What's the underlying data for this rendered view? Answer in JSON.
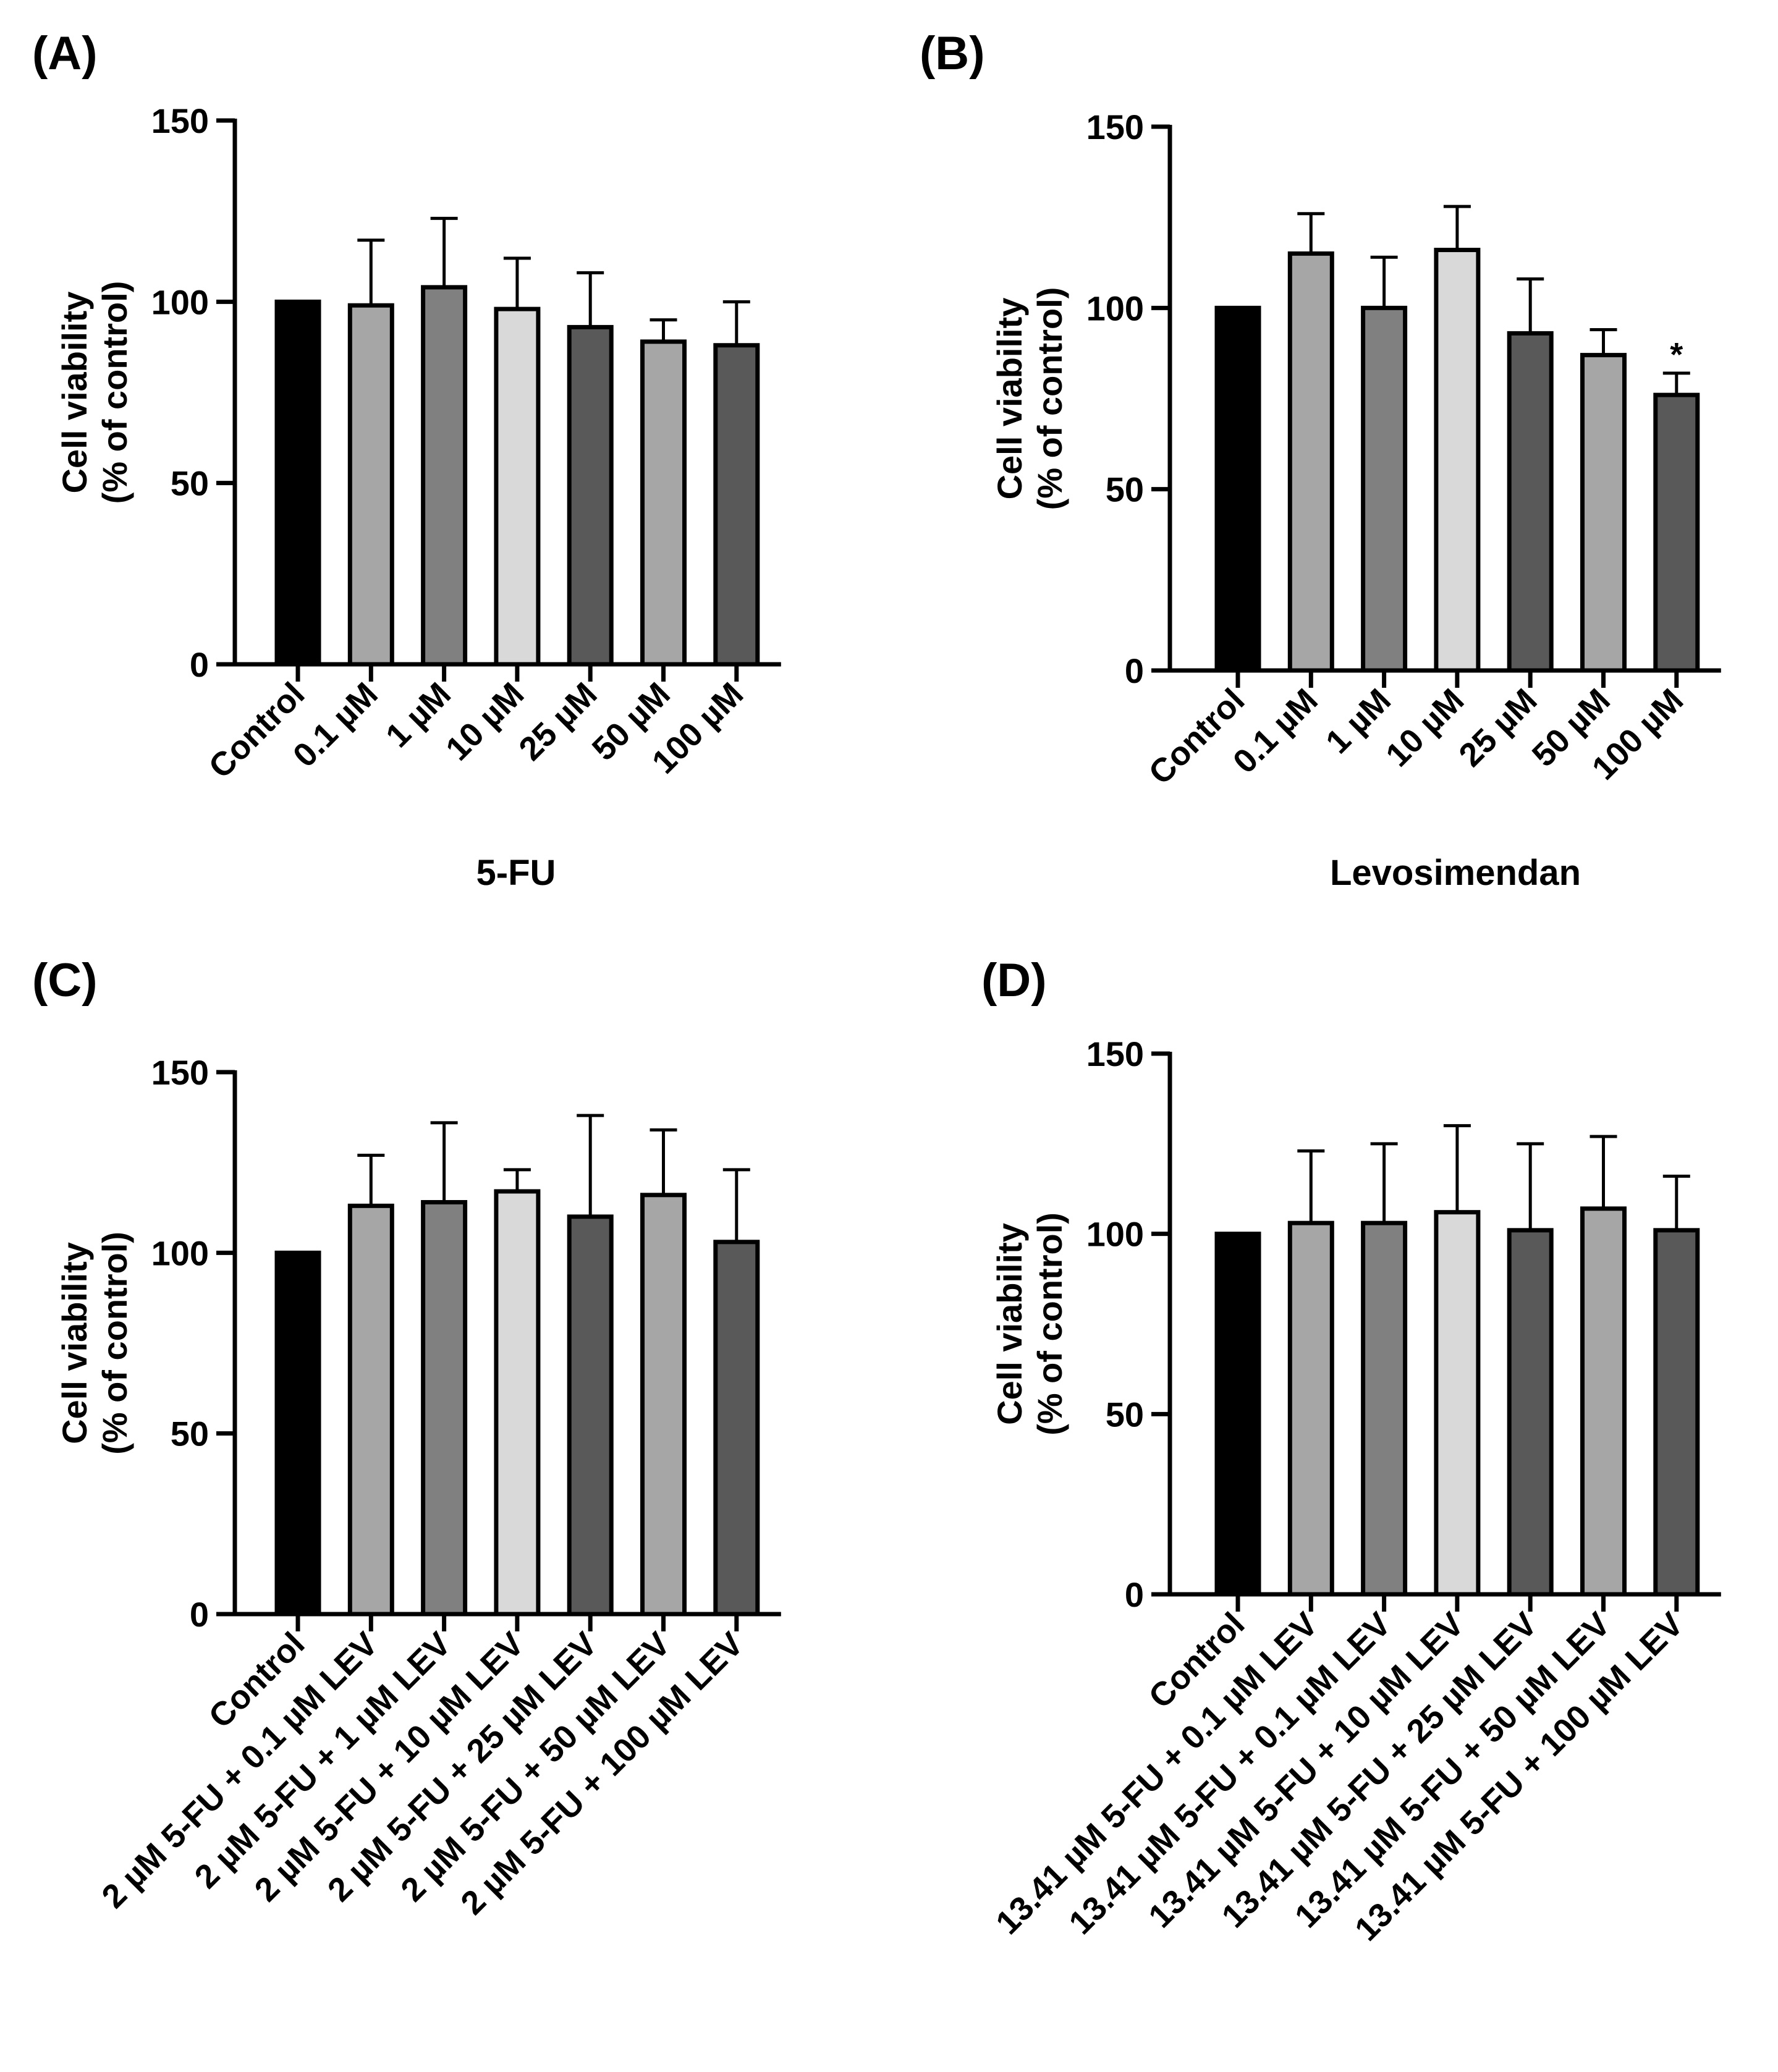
{
  "colors": {
    "control": "#000000",
    "light_gray": "#a6a6a6",
    "mid_gray": "#808080",
    "very_light": "#d9d9d9",
    "dark_gray": "#595959",
    "axis": "#000000"
  },
  "chart_data": [
    {
      "panel": "(A)",
      "type": "bar",
      "title": "",
      "xlabel": "5-FU",
      "ylabel_line1": "Cell viability",
      "ylabel_line2": "(% of control)",
      "ylim": [
        0,
        150
      ],
      "yticks": [
        "0",
        "50",
        "100",
        "150"
      ],
      "categories": [
        "Control",
        "0.1 µM",
        "1 µM",
        "10 µM",
        "25 µM",
        "50 µM",
        "100 µM"
      ],
      "values": [
        100,
        99,
        104,
        98,
        93,
        89,
        88
      ],
      "errors": [
        0,
        18,
        19,
        14,
        15,
        6,
        12
      ],
      "bar_colors": [
        "control",
        "light_gray",
        "mid_gray",
        "very_light",
        "dark_gray",
        "light_gray",
        "dark_gray"
      ],
      "annotations": [
        "",
        "",
        "",
        "",
        "",
        "",
        ""
      ]
    },
    {
      "panel": "(B)",
      "type": "bar",
      "title": "",
      "xlabel": "Levosimendan",
      "ylabel_line1": "Cell viability",
      "ylabel_line2": "(% of control)",
      "ylim": [
        0,
        150
      ],
      "yticks": [
        "0",
        "50",
        "100",
        "150"
      ],
      "categories": [
        "Control",
        "0.1 µM",
        "1 µM",
        "10 µM",
        "25 µM",
        "50 µM",
        "100 µM"
      ],
      "values": [
        100,
        115,
        100,
        116,
        93,
        87,
        76
      ],
      "errors": [
        0,
        11,
        14,
        12,
        15,
        7,
        6
      ],
      "bar_colors": [
        "control",
        "light_gray",
        "mid_gray",
        "very_light",
        "dark_gray",
        "light_gray",
        "dark_gray"
      ],
      "annotations": [
        "",
        "",
        "",
        "",
        "",
        "",
        "*"
      ]
    },
    {
      "panel": "(C)",
      "type": "bar",
      "title": "",
      "xlabel": "",
      "ylabel_line1": "Cell viability",
      "ylabel_line2": "(% of control)",
      "ylim": [
        0,
        150
      ],
      "yticks": [
        "0",
        "50",
        "100",
        "150"
      ],
      "categories": [
        "Control",
        "2 µM 5-FU  + 0.1 µM LEV",
        "2 µM 5-FU  + 1 µM LEV",
        "2 µM 5-FU  + 10 µM LEV",
        "2 µM 5-FU  + 25 µM LEV",
        "2 µM 5-FU  + 50 µM LEV",
        "2 µM 5-FU  + 100 µM LEV"
      ],
      "values": [
        100,
        113,
        114,
        117,
        110,
        116,
        103
      ],
      "errors": [
        0,
        14,
        22,
        6,
        28,
        18,
        20
      ],
      "bar_colors": [
        "control",
        "light_gray",
        "mid_gray",
        "very_light",
        "dark_gray",
        "light_gray",
        "dark_gray"
      ],
      "annotations": [
        "",
        "",
        "",
        "",
        "",
        "",
        ""
      ]
    },
    {
      "panel": "(D)",
      "type": "bar",
      "title": "",
      "xlabel": "",
      "ylabel_line1": "Cell viability",
      "ylabel_line2": "(% of control)",
      "ylim": [
        0,
        150
      ],
      "yticks": [
        "0",
        "50",
        "100",
        "150"
      ],
      "categories": [
        "Control",
        "13.41 µM 5-FU  + 0.1 µM LEV",
        "13.41 µM 5-FU  + 0.1 µM LEV",
        "13.41 µM 5-FU  + 10 µM LEV",
        "13.41 µM 5-FU  + 25 µM LEV",
        "13.41 µM 5-FU  + 50 µM LEV",
        "13.41 µM 5-FU  + 100 µM LEV"
      ],
      "values": [
        100,
        103,
        103,
        106,
        101,
        107,
        101
      ],
      "errors": [
        0,
        20,
        22,
        24,
        24,
        20,
        15
      ],
      "bar_colors": [
        "control",
        "light_gray",
        "mid_gray",
        "very_light",
        "dark_gray",
        "light_gray",
        "dark_gray"
      ],
      "annotations": [
        "",
        "",
        "",
        "",
        "",
        "",
        ""
      ]
    }
  ]
}
